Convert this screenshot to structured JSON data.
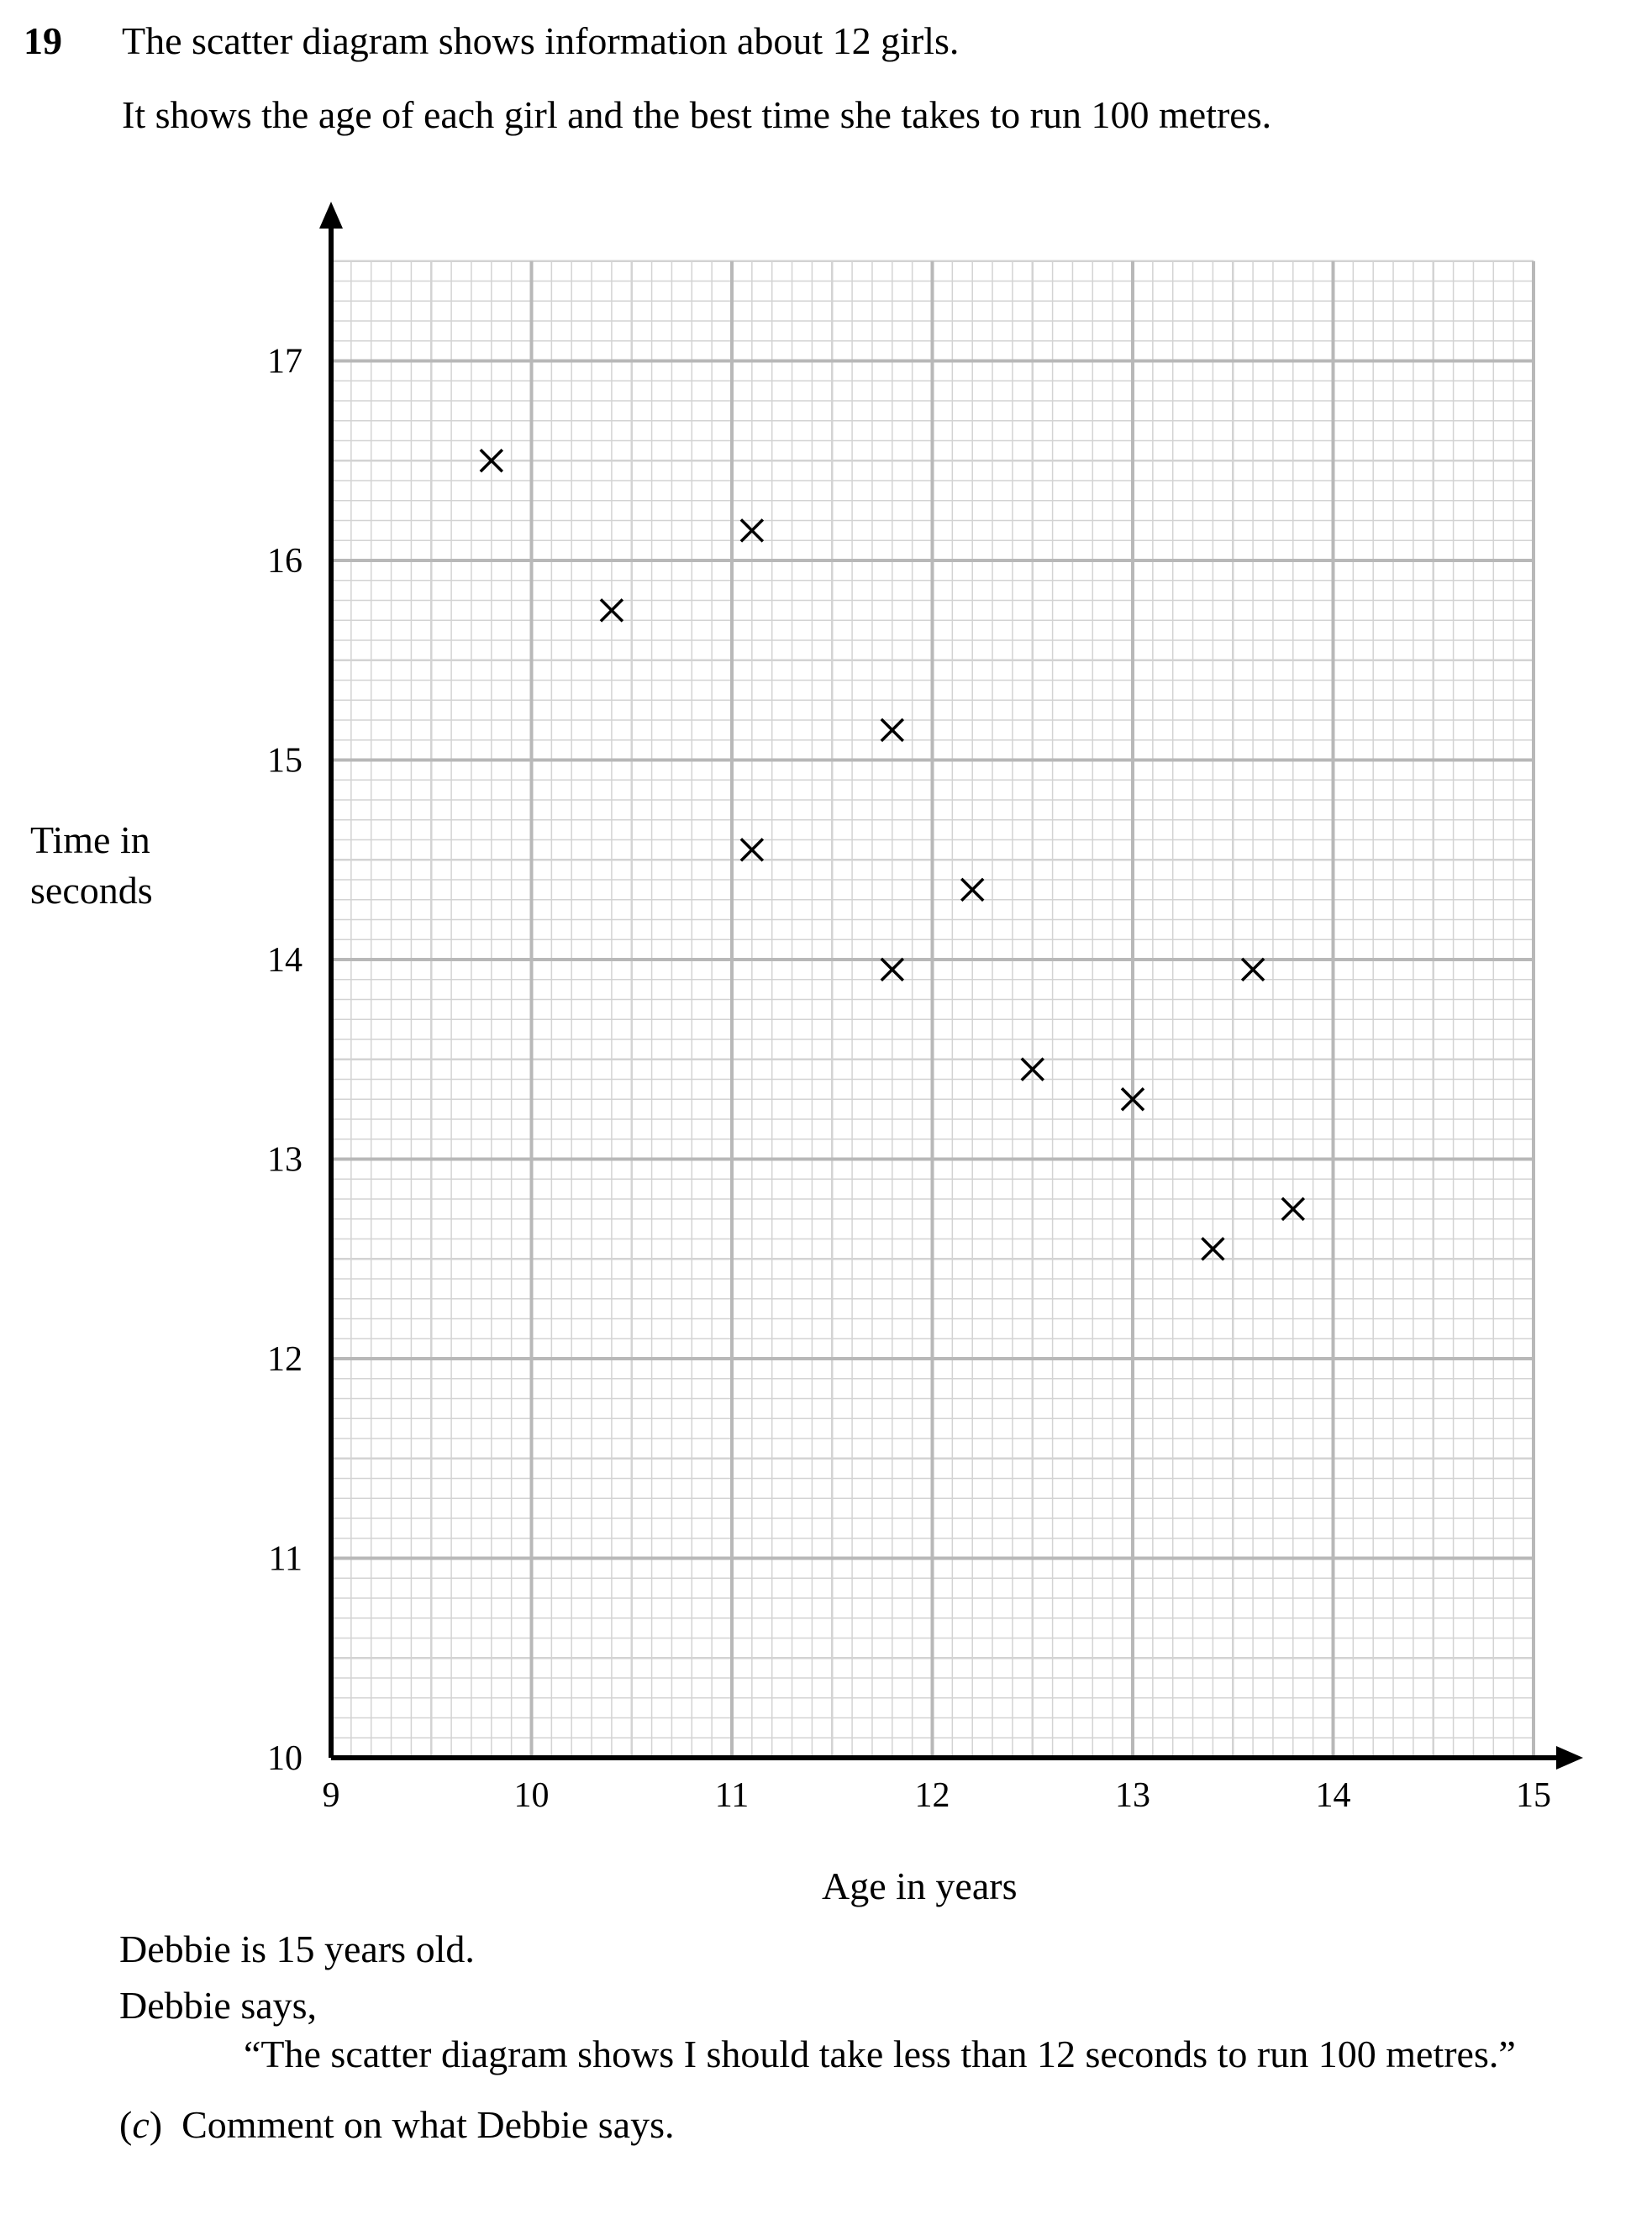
{
  "question": {
    "number": "19",
    "intro_line1": "The scatter diagram shows information about 12 girls.",
    "intro_line2": "It shows the age of each girl and the best time she takes to run 100 metres."
  },
  "chart_data": {
    "type": "scatter",
    "title": "",
    "xlabel": "Age in years",
    "ylabel_lines": [
      "Time in",
      "seconds"
    ],
    "xlim": [
      9,
      15
    ],
    "ylim": [
      10,
      17.5
    ],
    "xticks": [
      "9",
      "10",
      "11",
      "12",
      "13",
      "14",
      "15"
    ],
    "yticks": [
      "10",
      "11",
      "12",
      "13",
      "14",
      "15",
      "16",
      "17"
    ],
    "grid": true,
    "marker": "cross",
    "points": [
      {
        "x": 9.8,
        "y": 16.5
      },
      {
        "x": 10.4,
        "y": 15.75
      },
      {
        "x": 11.1,
        "y": 16.15
      },
      {
        "x": 11.1,
        "y": 14.55
      },
      {
        "x": 11.8,
        "y": 15.15
      },
      {
        "x": 11.8,
        "y": 13.95
      },
      {
        "x": 12.2,
        "y": 14.35
      },
      {
        "x": 12.5,
        "y": 13.45
      },
      {
        "x": 13.0,
        "y": 13.3
      },
      {
        "x": 13.4,
        "y": 12.55
      },
      {
        "x": 13.6,
        "y": 13.95
      },
      {
        "x": 13.8,
        "y": 12.75
      }
    ]
  },
  "text_after": {
    "line1": "Debbie is 15 years old.",
    "line2": "Debbie says,",
    "line3": "“The scatter diagram shows I should take less than 12 seconds to run 100 metres.”",
    "part_label": "c",
    "part_text": "Comment on what Debbie says."
  },
  "colors": {
    "axis": "#000000",
    "grid_major": "#b8b8b8",
    "grid_minor": "#d3d3d3",
    "marker": "#000000"
  }
}
